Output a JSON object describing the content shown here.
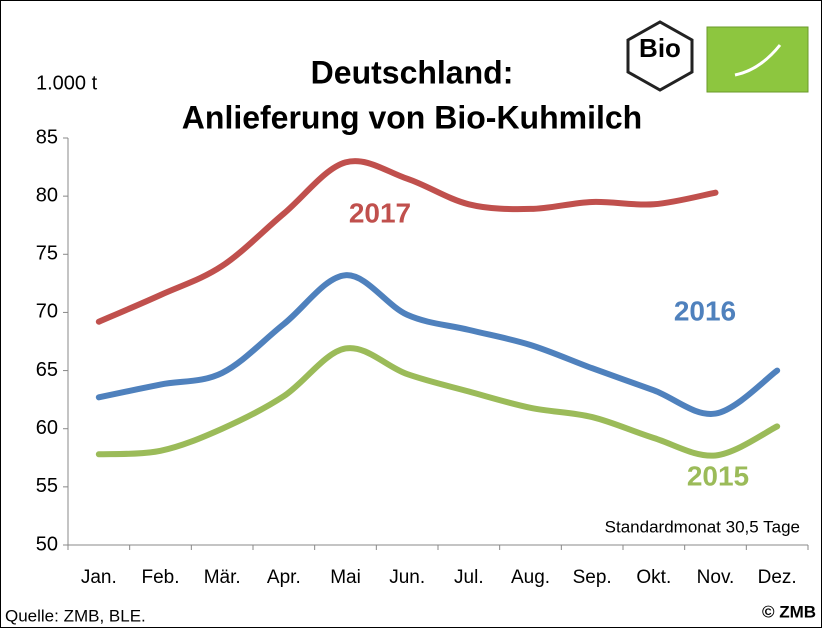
{
  "chart_data": {
    "type": "line",
    "title": [
      "Deutschland:",
      "Anlieferung von Bio-Kuhmilch"
    ],
    "unit_label": "1.000 t",
    "note": "Standardmonat 30,5 Tage",
    "source": "Quelle: ZMB, BLE.",
    "copyright": "© ZMB",
    "logo_text": "Bio",
    "categories": [
      "Jan.",
      "Feb.",
      "Mär.",
      "Apr.",
      "Mai",
      "Jun.",
      "Jul.",
      "Aug.",
      "Sep.",
      "Okt.",
      "Nov.",
      "Dez."
    ],
    "series": [
      {
        "name": "2017",
        "color": "#c0504d",
        "values": [
          69.2,
          71.5,
          74,
          78.5,
          82.9,
          81.5,
          79.3,
          78.9,
          79.5,
          79.3,
          80.3,
          null
        ]
      },
      {
        "name": "2016",
        "color": "#4f81bd",
        "values": [
          62.7,
          63.8,
          64.8,
          69,
          73.2,
          69.8,
          68.5,
          67.2,
          65.2,
          63.3,
          61.3,
          65
        ]
      },
      {
        "name": "2015",
        "color": "#9bbb59",
        "values": [
          57.8,
          58.1,
          60,
          62.8,
          66.9,
          64.7,
          63.2,
          61.8,
          61,
          59.2,
          57.7,
          60.2
        ]
      }
    ],
    "ylim": [
      50,
      85
    ],
    "yticks": [
      50,
      55,
      60,
      65,
      70,
      75,
      80,
      85
    ]
  }
}
